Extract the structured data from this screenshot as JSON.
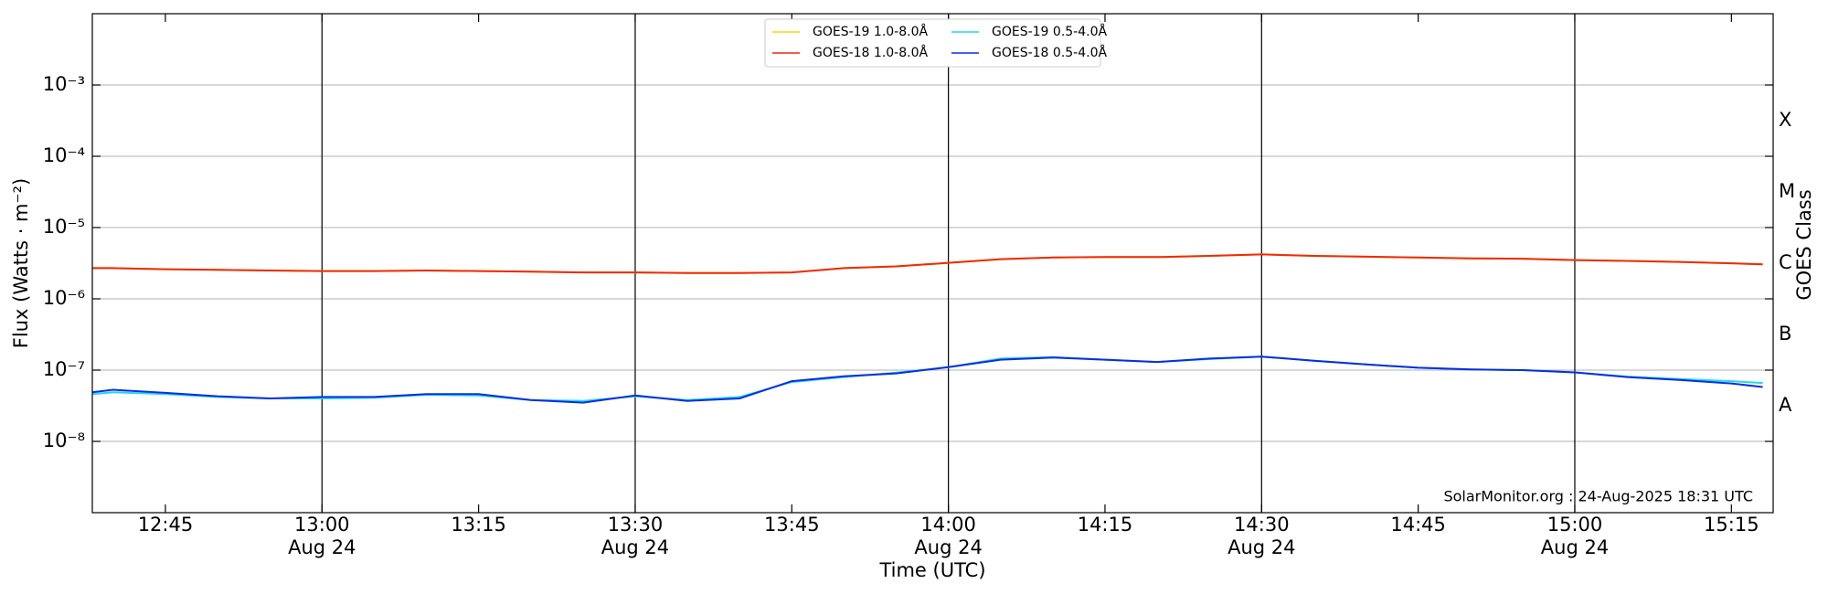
{
  "chart_data": {
    "type": "line",
    "y_label": "Flux (Watts · m⁻²)",
    "x_label": "Time (UTC)",
    "y2_label": "GOES Class",
    "annotation": "SolarMonitor.org : 24-Aug-2025 18:31 UTC",
    "log_y": true,
    "grid": true,
    "legend": "upper center",
    "x": [
      "12:38",
      "12:40",
      "12:45",
      "12:50",
      "12:55",
      "13:00",
      "13:05",
      "13:10",
      "13:15",
      "13:20",
      "13:25",
      "13:30",
      "13:35",
      "13:40",
      "13:45",
      "13:50",
      "13:55",
      "14:00",
      "14:05",
      "14:10",
      "14:15",
      "14:20",
      "14:25",
      "14:30",
      "14:35",
      "14:40",
      "14:45",
      "14:50",
      "14:55",
      "15:00",
      "15:05",
      "15:10",
      "15:15",
      "15:18"
    ],
    "xlim": [
      "12:38",
      "15:19"
    ],
    "xticks": [
      "12:45",
      {
        "value": "13:00",
        "label": [
          "13:00",
          "Aug 24"
        ]
      },
      "13:15",
      {
        "value": "13:30",
        "label": [
          "13:30",
          "Aug 24"
        ]
      },
      "13:45",
      {
        "value": "14:00",
        "label": [
          "14:00",
          "Aug 24"
        ]
      },
      "14:15",
      {
        "value": "14:30",
        "label": [
          "14:30",
          "Aug 24"
        ]
      },
      "14:45",
      {
        "value": "15:00",
        "label": [
          "15:00",
          "Aug 24"
        ]
      },
      "15:15"
    ],
    "ylim": [
      1e-09,
      0.01
    ],
    "yticks": [
      {
        "value": 1e-08,
        "label": "10⁻⁸"
      },
      {
        "value": 1e-07,
        "label": "10⁻⁷"
      },
      {
        "value": 1e-06,
        "label": "10⁻⁶"
      },
      {
        "value": 1e-05,
        "label": "10⁻⁵"
      },
      {
        "value": 0.0001,
        "label": "10⁻⁴"
      },
      {
        "value": 0.001,
        "label": "10⁻³"
      }
    ],
    "y2lim": [
      1e-09,
      0.01
    ],
    "y2ticks": [
      {
        "value": 3.16e-08,
        "label": "A"
      },
      {
        "value": 3.16e-07,
        "label": "B"
      },
      {
        "value": 3.16e-06,
        "label": "C"
      },
      {
        "value": 3.16e-05,
        "label": "M"
      },
      {
        "value": 0.000316,
        "label": "X"
      }
    ],
    "series": [
      {
        "name": "GOES-19 1.0-8.0Å",
        "color": "#ffd700",
        "values": [
          2.7e-06,
          2.7e-06,
          2.6e-06,
          2.55e-06,
          2.5e-06,
          2.45e-06,
          2.45e-06,
          2.5e-06,
          2.45e-06,
          2.4e-06,
          2.35e-06,
          2.35e-06,
          2.3e-06,
          2.3e-06,
          2.35e-06,
          2.7e-06,
          2.85e-06,
          3.2e-06,
          3.6e-06,
          3.8e-06,
          3.85e-06,
          3.85e-06,
          4e-06,
          4.2e-06,
          4e-06,
          3.9e-06,
          3.8e-06,
          3.7e-06,
          3.65e-06,
          3.5e-06,
          3.4e-06,
          3.3e-06,
          3.15e-06,
          3.05e-06
        ]
      },
      {
        "name": "GOES-18 1.0-8.0Å",
        "color": "#ee2a0a",
        "values": [
          2.7e-06,
          2.7e-06,
          2.6e-06,
          2.55e-06,
          2.5e-06,
          2.45e-06,
          2.45e-06,
          2.5e-06,
          2.45e-06,
          2.4e-06,
          2.35e-06,
          2.35e-06,
          2.3e-06,
          2.3e-06,
          2.35e-06,
          2.7e-06,
          2.85e-06,
          3.2e-06,
          3.6e-06,
          3.8e-06,
          3.85e-06,
          3.85e-06,
          4e-06,
          4.2e-06,
          4e-06,
          3.9e-06,
          3.8e-06,
          3.7e-06,
          3.65e-06,
          3.5e-06,
          3.4e-06,
          3.3e-06,
          3.15e-06,
          3.05e-06
        ]
      },
      {
        "name": "GOES-19 0.5-4.0Å",
        "color": "#22d8f0",
        "values": [
          4.6e-08,
          4.9e-08,
          4.6e-08,
          4.2e-08,
          4e-08,
          4e-08,
          4.1e-08,
          4.5e-08,
          4.4e-08,
          3.8e-08,
          3.7e-08,
          4.3e-08,
          3.8e-08,
          4.2e-08,
          6.8e-08,
          8e-08,
          9.2e-08,
          1.1e-07,
          1.45e-07,
          1.52e-07,
          1.4e-07,
          1.3e-07,
          1.43e-07,
          1.55e-07,
          1.35e-07,
          1.2e-07,
          1.08e-07,
          1.02e-07,
          1e-07,
          9.3e-08,
          8.1e-08,
          7.5e-08,
          7e-08,
          6.6e-08
        ]
      },
      {
        "name": "GOES-18 0.5-4.0Å",
        "color": "#0a2ee0",
        "values": [
          4.9e-08,
          5.3e-08,
          4.8e-08,
          4.3e-08,
          4e-08,
          4.2e-08,
          4.2e-08,
          4.6e-08,
          4.6e-08,
          3.8e-08,
          3.5e-08,
          4.4e-08,
          3.7e-08,
          4e-08,
          7e-08,
          8.2e-08,
          9e-08,
          1.1e-07,
          1.4e-07,
          1.5e-07,
          1.4e-07,
          1.3e-07,
          1.45e-07,
          1.55e-07,
          1.35e-07,
          1.2e-07,
          1.08e-07,
          1.02e-07,
          1e-07,
          9.3e-08,
          8e-08,
          7.3e-08,
          6.5e-08,
          5.8e-08
        ]
      }
    ]
  }
}
